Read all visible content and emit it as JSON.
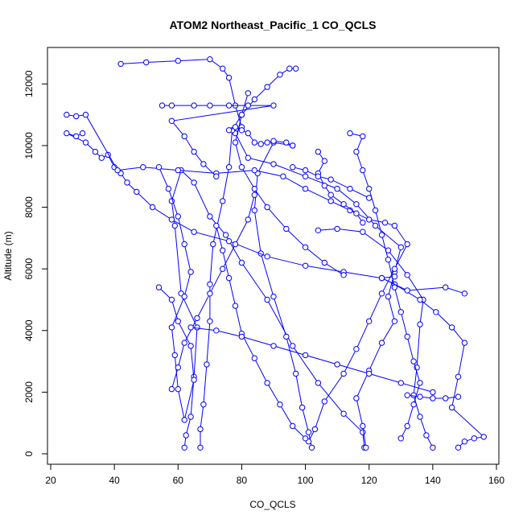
{
  "chart_data": {
    "type": "line",
    "title": "ATOM2 Northeast_Pacific_1 CO_QCLS",
    "xlabel": "CO_QCLS",
    "ylabel": "Altitude (m)",
    "xlim": [
      20,
      160
    ],
    "ylim": [
      0,
      13000
    ],
    "xticks": [
      20,
      40,
      60,
      80,
      100,
      120,
      140,
      160
    ],
    "yticks": [
      0,
      2000,
      4000,
      6000,
      8000,
      10000,
      12000
    ],
    "grid": false,
    "markers": "open-circle",
    "color": "#0000ff",
    "series": [
      {
        "points": [
          [
            62,
            200
          ],
          [
            62.5,
            600
          ],
          [
            64,
            1200
          ],
          [
            65,
            2500
          ],
          [
            66,
            4100
          ],
          [
            61,
            5200
          ],
          [
            59,
            7400
          ],
          [
            58,
            8200
          ],
          [
            61,
            9200
          ],
          [
            65,
            8800
          ],
          [
            70,
            7700
          ],
          [
            75,
            7100
          ],
          [
            80,
            6200
          ],
          [
            88,
            5000
          ],
          [
            96,
            3500
          ],
          [
            104,
            2300
          ],
          [
            112,
            1300
          ],
          [
            118,
            700
          ],
          [
            118.5,
            200
          ]
        ]
      },
      {
        "points": [
          [
            119,
            200
          ],
          [
            118,
            900
          ],
          [
            116,
            1800
          ],
          [
            120,
            2700
          ],
          [
            124,
            3600
          ],
          [
            128,
            4300
          ],
          [
            126,
            5100
          ],
          [
            128,
            5900
          ],
          [
            130,
            6700
          ],
          [
            122,
            7400
          ],
          [
            116,
            8100
          ],
          [
            110,
            8600
          ],
          [
            100,
            9000
          ],
          [
            90,
            9400
          ],
          [
            82,
            9600
          ],
          [
            78,
            10400
          ],
          [
            80,
            10600
          ],
          [
            78,
            11300
          ],
          [
            76,
            12200
          ],
          [
            74,
            12500
          ],
          [
            70,
            12800
          ],
          [
            60,
            12750
          ],
          [
            50,
            12700
          ],
          [
            42,
            12650
          ]
        ]
      },
      {
        "points": [
          [
            67,
            200
          ],
          [
            67,
            800
          ],
          [
            68,
            1600
          ],
          [
            69,
            2900
          ],
          [
            70,
            4300
          ],
          [
            70,
            5500
          ],
          [
            71,
            6800
          ],
          [
            74,
            8200
          ],
          [
            76,
            9300
          ],
          [
            77,
            10500
          ],
          [
            80,
            11000
          ],
          [
            84,
            11500
          ],
          [
            88,
            11900
          ],
          [
            92,
            12300
          ],
          [
            95,
            12500
          ],
          [
            97,
            12500
          ]
        ]
      },
      {
        "points": [
          [
            102,
            200
          ],
          [
            101,
            700
          ],
          [
            99,
            1500
          ],
          [
            97,
            2600
          ],
          [
            94,
            3800
          ],
          [
            90,
            5100
          ],
          [
            86,
            6500
          ],
          [
            84,
            7900
          ],
          [
            85,
            9100
          ],
          [
            90,
            10100
          ],
          [
            96,
            10000
          ]
        ]
      },
      {
        "points": [
          [
            140,
            200
          ],
          [
            138,
            600
          ],
          [
            136,
            1200
          ],
          [
            134,
            1900
          ],
          [
            135,
            2800
          ],
          [
            136,
            4200
          ],
          [
            137,
            5000
          ],
          [
            132,
            5800
          ],
          [
            126,
            6600
          ],
          [
            118,
            7200
          ],
          [
            110,
            7300
          ],
          [
            104,
            7250
          ]
        ]
      },
      {
        "points": [
          [
            148,
            200
          ],
          [
            150,
            400
          ],
          [
            153,
            500
          ],
          [
            156,
            550
          ],
          [
            146,
            1500
          ],
          [
            148,
            2500
          ],
          [
            150,
            3600
          ],
          [
            146,
            4100
          ],
          [
            141,
            4600
          ],
          [
            136,
            5000
          ],
          [
            128,
            5500
          ],
          [
            124,
            5700
          ],
          [
            128,
            5750
          ]
        ]
      },
      {
        "points": [
          [
            30,
            10400
          ],
          [
            28,
            10300
          ],
          [
            25,
            10400
          ],
          [
            31,
            10100
          ],
          [
            34,
            9800
          ],
          [
            36,
            9600
          ],
          [
            38,
            9700
          ],
          [
            40,
            9300
          ],
          [
            42,
            9100
          ],
          [
            44,
            8800
          ],
          [
            47,
            8500
          ],
          [
            52,
            8000
          ],
          [
            58,
            7600
          ],
          [
            65,
            7200
          ],
          [
            76,
            6900
          ],
          [
            88,
            6400
          ],
          [
            100,
            6100
          ],
          [
            112,
            5900
          ],
          [
            124,
            5700
          ],
          [
            132,
            5300
          ],
          [
            144,
            5400
          ],
          [
            150,
            5200
          ]
        ]
      },
      {
        "points": [
          [
            25,
            11000
          ],
          [
            28,
            10950
          ],
          [
            31,
            11000
          ],
          [
            41,
            9200
          ],
          [
            49,
            9300
          ],
          [
            60,
            9200
          ],
          [
            72,
            9100
          ],
          [
            84,
            9200
          ],
          [
            93,
            9000
          ],
          [
            100,
            8600
          ],
          [
            108,
            8200
          ],
          [
            114,
            7900
          ],
          [
            120,
            7600
          ],
          [
            125,
            7500
          ],
          [
            128,
            7400
          ],
          [
            132,
            6800
          ],
          [
            128,
            6000
          ],
          [
            124,
            5200
          ],
          [
            120,
            4300
          ],
          [
            116,
            3400
          ],
          [
            112,
            2600
          ],
          [
            106,
            1700
          ],
          [
            103,
            800
          ],
          [
            101,
            400
          ]
        ]
      },
      {
        "points": [
          [
            54,
            5400
          ],
          [
            58,
            5000
          ],
          [
            60,
            4300
          ],
          [
            64,
            3500
          ],
          [
            65,
            2400
          ],
          [
            62,
            1100
          ],
          [
            60,
            2100
          ],
          [
            59,
            3200
          ],
          [
            58,
            4100
          ],
          [
            62,
            5100
          ],
          [
            64,
            5900
          ],
          [
            62,
            6800
          ],
          [
            60,
            7700
          ],
          [
            57,
            8600
          ],
          [
            54,
            9300
          ]
        ]
      },
      {
        "points": [
          [
            55,
            11300
          ],
          [
            58,
            11300
          ],
          [
            65,
            11300
          ],
          [
            70,
            11300
          ],
          [
            76,
            11300
          ],
          [
            82,
            11300
          ],
          [
            90,
            11300
          ],
          [
            58,
            10800
          ],
          [
            62,
            10300
          ],
          [
            65,
            9800
          ],
          [
            68,
            9400
          ],
          [
            72,
            9000
          ]
        ]
      },
      {
        "points": [
          [
            76,
            10500
          ],
          [
            78,
            10600
          ],
          [
            80,
            10500
          ],
          [
            82,
            10400
          ],
          [
            84,
            10100
          ],
          [
            86,
            10050
          ],
          [
            88,
            10100
          ],
          [
            90,
            10150
          ],
          [
            94,
            10100
          ],
          [
            96,
            10000
          ]
        ]
      },
      {
        "points": [
          [
            72,
            7400
          ],
          [
            74,
            6600
          ],
          [
            76,
            5700
          ],
          [
            78,
            4800
          ],
          [
            80,
            3900
          ],
          [
            84,
            3100
          ],
          [
            88,
            2300
          ],
          [
            92,
            1600
          ],
          [
            96,
            900
          ],
          [
            100,
            500
          ]
        ]
      },
      {
        "points": [
          [
            114,
            10400
          ],
          [
            118,
            10300
          ],
          [
            116,
            9800
          ],
          [
            118,
            9200
          ],
          [
            120,
            8600
          ],
          [
            122,
            7900
          ],
          [
            124,
            7100
          ],
          [
            126,
            6300
          ],
          [
            128,
            5400
          ],
          [
            130,
            4600
          ],
          [
            132,
            3800
          ],
          [
            134,
            3000
          ],
          [
            136,
            2300
          ],
          [
            134,
            1600
          ],
          [
            132,
            900
          ],
          [
            130,
            500
          ]
        ]
      },
      {
        "points": [
          [
            104,
            9800
          ],
          [
            106,
            9500
          ],
          [
            104,
            9100
          ],
          [
            106,
            8700
          ],
          [
            108,
            8400
          ],
          [
            112,
            8100
          ],
          [
            116,
            7800
          ],
          [
            118,
            7500
          ]
        ]
      },
      {
        "points": [
          [
            84,
            8400
          ],
          [
            82,
            7600
          ],
          [
            78,
            6800
          ],
          [
            74,
            6000
          ],
          [
            70,
            5200
          ],
          [
            66,
            4400
          ],
          [
            62,
            3600
          ],
          [
            60,
            2800
          ],
          [
            58,
            2100
          ]
        ]
      },
      {
        "points": [
          [
            82,
            11700
          ],
          [
            80,
            11000
          ],
          [
            78,
            10100
          ],
          [
            80,
            9300
          ],
          [
            84,
            8600
          ],
          [
            88,
            8000
          ],
          [
            94,
            7300
          ],
          [
            100,
            6700
          ],
          [
            106,
            6200
          ],
          [
            112,
            5800
          ]
        ]
      },
      {
        "points": [
          [
            64,
            4100
          ],
          [
            72,
            4000
          ],
          [
            80,
            3800
          ],
          [
            90,
            3500
          ],
          [
            100,
            3200
          ],
          [
            110,
            2900
          ],
          [
            120,
            2600
          ],
          [
            130,
            2300
          ],
          [
            140,
            2000
          ]
        ]
      },
      {
        "points": [
          [
            96,
            9300
          ],
          [
            100,
            9200
          ],
          [
            104,
            9000
          ],
          [
            108,
            8900
          ],
          [
            114,
            8600
          ],
          [
            120,
            8300
          ]
        ]
      },
      {
        "points": [
          [
            132,
            1900
          ],
          [
            136,
            1850
          ],
          [
            140,
            1800
          ],
          [
            144,
            1800
          ],
          [
            148,
            1850
          ]
        ]
      }
    ]
  }
}
